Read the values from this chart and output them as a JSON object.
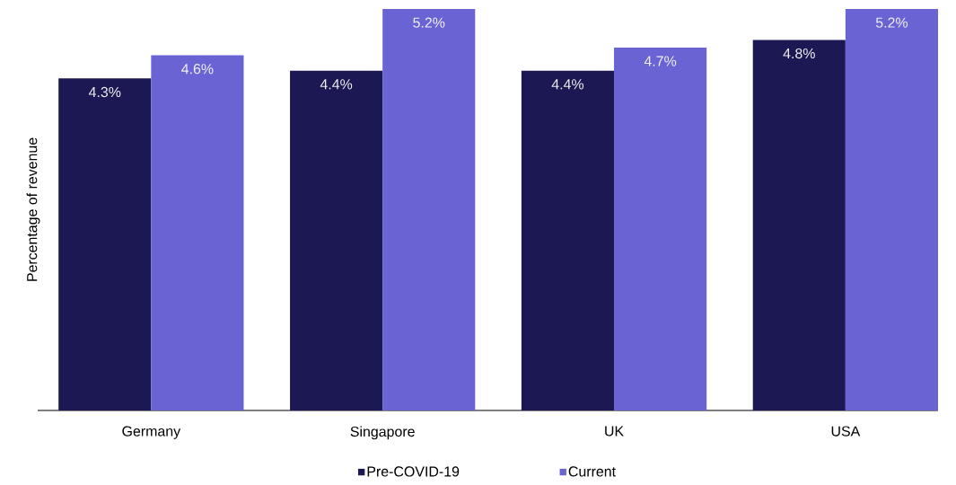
{
  "chart_data": {
    "type": "bar",
    "ylabel": "Percentage of revenue",
    "categories": [
      "Germany",
      "Singapore",
      "UK",
      "USA"
    ],
    "series": [
      {
        "name": "Pre-COVID-19",
        "color": "#1b1854",
        "values": [
          4.3,
          4.4,
          4.4,
          4.8
        ],
        "value_labels": [
          "4.3%",
          "4.4%",
          "4.4%",
          "4.8%"
        ]
      },
      {
        "name": "Current",
        "color": "#6a63d4",
        "values": [
          4.6,
          5.2,
          4.7,
          5.2
        ],
        "value_labels": [
          "4.6%",
          "5.2%",
          "4.7%",
          "5.2%"
        ]
      }
    ],
    "tick_labels": "x",
    "legend": "bottom"
  }
}
